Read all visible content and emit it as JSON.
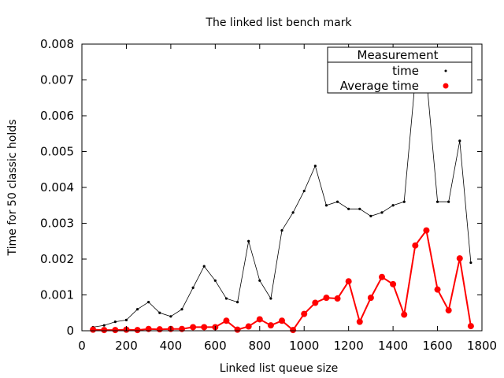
{
  "chart_data": {
    "type": "scatter",
    "title": "The linked list bench mark",
    "xlabel": "Linked list queue size",
    "ylabel": "Time for 50 classic holds",
    "xlim": [
      0,
      1800
    ],
    "ylim": [
      0,
      0.008
    ],
    "x_ticks": [
      0,
      200,
      400,
      600,
      800,
      1000,
      1200,
      1400,
      1600,
      1800
    ],
    "x_tick_labels": [
      "0",
      "200",
      "400",
      "600",
      "800",
      "1000",
      "1200",
      "1400",
      "1600",
      "1800"
    ],
    "y_ticks": [
      0,
      0.001,
      0.002,
      0.003,
      0.004,
      0.005,
      0.006,
      0.007,
      0.008
    ],
    "y_tick_labels": [
      "0",
      "0.001",
      "0.002",
      "0.003",
      "0.004",
      "0.005",
      "0.006",
      "0.007",
      "0.008"
    ],
    "grid": false,
    "legend": {
      "title": "Measurement",
      "placement": "top-right",
      "entries": [
        "time",
        "Average time"
      ]
    },
    "series": [
      {
        "name": "time",
        "color": "#000000",
        "marker": "small-dot",
        "line": true,
        "x": [
          50,
          100,
          150,
          200,
          250,
          300,
          350,
          400,
          450,
          500,
          550,
          600,
          650,
          700,
          750,
          800,
          850,
          900,
          950,
          1000,
          1050,
          1100,
          1150,
          1200,
          1250,
          1300,
          1350,
          1400,
          1450,
          1500,
          1550,
          1600,
          1650,
          1700,
          1750
        ],
        "y": [
          0.0001,
          0.00015,
          0.00025,
          0.0003,
          0.0006,
          0.0008,
          0.0005,
          0.0004,
          0.0006,
          0.0012,
          0.0018,
          0.0014,
          0.0009,
          0.0008,
          0.0025,
          0.0014,
          0.0009,
          0.0028,
          0.0033,
          0.0039,
          0.0046,
          0.0035,
          0.0036,
          0.0034,
          0.0034,
          0.0032,
          0.0033,
          0.0035,
          0.0036,
          0.007,
          0.0071,
          0.0036,
          0.0036,
          0.0053,
          0.0019
        ]
      },
      {
        "name": "Average time",
        "color": "#ff0000",
        "marker": "circle",
        "line": true,
        "x": [
          50,
          100,
          150,
          200,
          250,
          300,
          350,
          400,
          450,
          500,
          550,
          600,
          650,
          700,
          750,
          800,
          850,
          900,
          950,
          1000,
          1050,
          1100,
          1150,
          1200,
          1250,
          1300,
          1350,
          1400,
          1450,
          1500,
          1550,
          1600,
          1650,
          1700,
          1750
        ],
        "y": [
          3e-05,
          2e-05,
          2e-05,
          3e-05,
          2e-05,
          5e-05,
          4e-05,
          5e-05,
          5e-05,
          0.0001,
          0.0001,
          0.0001,
          0.00028,
          3e-05,
          0.00012,
          0.00032,
          0.00015,
          0.00028,
          2e-05,
          0.00047,
          0.00078,
          0.00092,
          0.0009,
          0.00138,
          0.00025,
          0.00092,
          0.0015,
          0.0013,
          0.00045,
          0.00238,
          0.0028,
          0.00115,
          0.00057,
          0.00202,
          0.00013
        ]
      }
    ]
  }
}
